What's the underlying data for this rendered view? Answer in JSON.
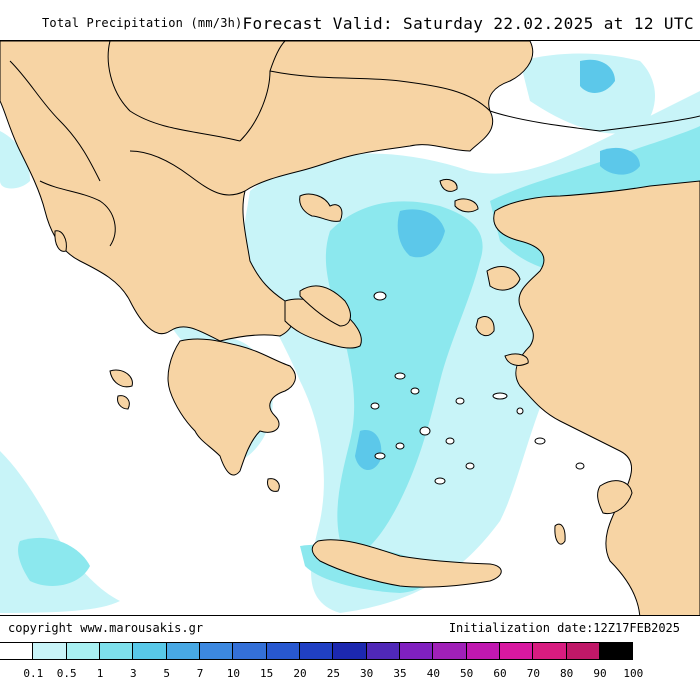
{
  "header": {
    "title": "Total Precipitation (mm/3h)",
    "forecast": "Forecast Valid:  Saturday 22.02.2025 at 12 UTC"
  },
  "footer": {
    "copyright": "copyright  www.marousakis.gr",
    "initialization": "Initialization date:12Z17FEB2025"
  },
  "colors": {
    "land": "#f7d4a4",
    "sea": "#ffffff",
    "precip_light": "#c8f4f8",
    "precip_mid": "#8ce8ee",
    "precip_high": "#5cc8ea",
    "precip_heavy": "#4aa0e0"
  },
  "legend": {
    "levels": [
      "0.1",
      "0.5",
      "1",
      "3",
      "5",
      "7",
      "10",
      "15",
      "20",
      "25",
      "30",
      "35",
      "40",
      "50",
      "60",
      "70",
      "80",
      "90",
      "100"
    ],
    "colors": [
      "#ffffff",
      "#c8f4f8",
      "#a8f0f2",
      "#7ee0ec",
      "#58c8e8",
      "#48a8e4",
      "#3c88e0",
      "#3470d8",
      "#2858d0",
      "#2040c4",
      "#1c28b0",
      "#5028b8",
      "#8020c0",
      "#a020b8",
      "#c018b0",
      "#d818a0",
      "#d81c80",
      "#c01868",
      "#000000"
    ]
  }
}
